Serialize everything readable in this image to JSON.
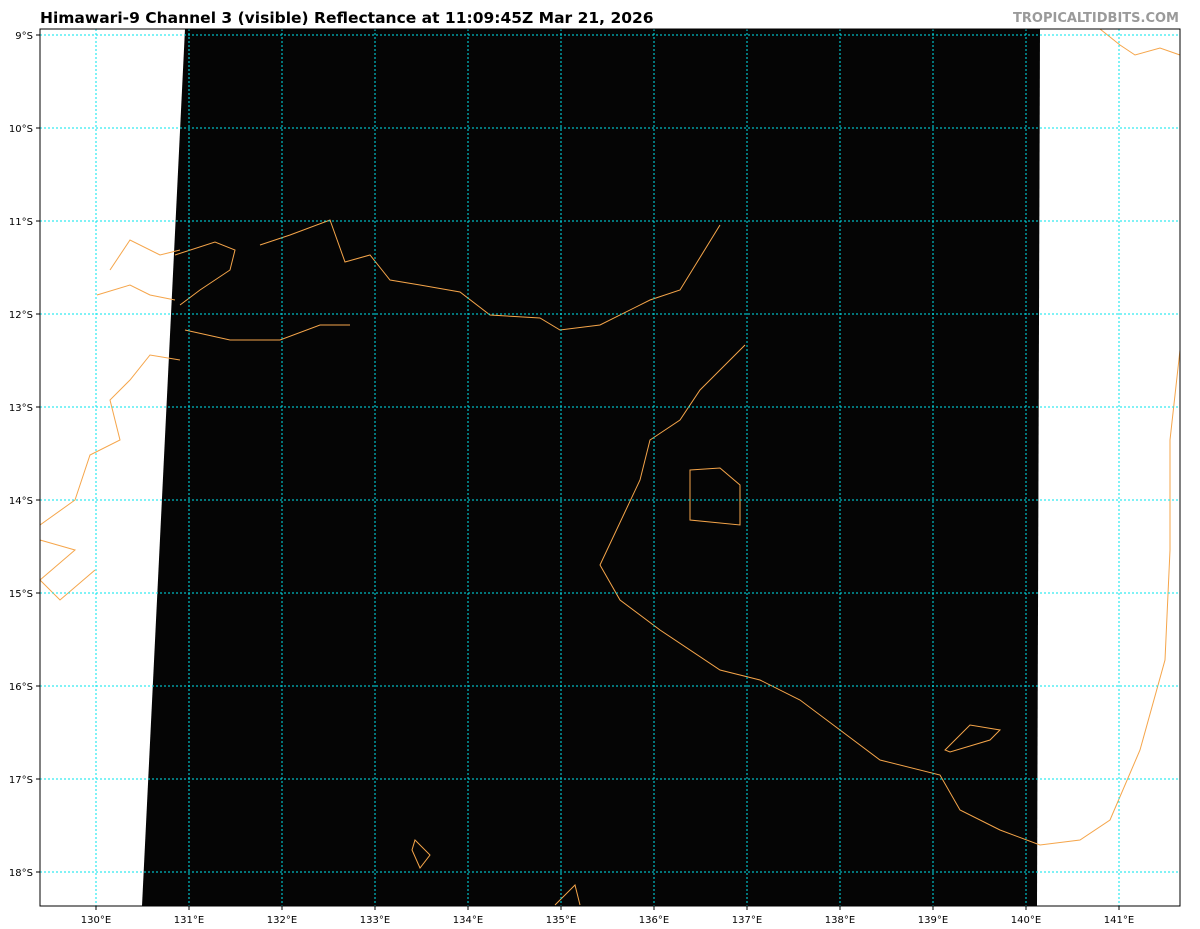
{
  "title": "Himawari-9 Channel 3 (visible) Reflectance at 11:09:45Z Mar 21, 2026",
  "brand": "TROPICALTIDBITS.COM",
  "map": {
    "lon_ticks": [
      130,
      131,
      132,
      133,
      134,
      135,
      136,
      137,
      138,
      139,
      140,
      141
    ],
    "lon_labels": [
      "130°E",
      "131°E",
      "132°E",
      "133°E",
      "134°E",
      "135°E",
      "136°E",
      "137°E",
      "138°E",
      "139°E",
      "140°E",
      "141°E"
    ],
    "lat_ticks": [
      9,
      10,
      11,
      12,
      13,
      14,
      15,
      16,
      17,
      18
    ],
    "lat_labels": [
      "9°S",
      "10°S",
      "11°S",
      "12°S",
      "13°S",
      "14°S",
      "15°S",
      "16°S",
      "17°S",
      "18°S"
    ],
    "colors": {
      "gridlines": "#00e5ee",
      "coastline": "#f5a54a",
      "imagery": "#050505",
      "no_data": "#ffffff"
    }
  }
}
